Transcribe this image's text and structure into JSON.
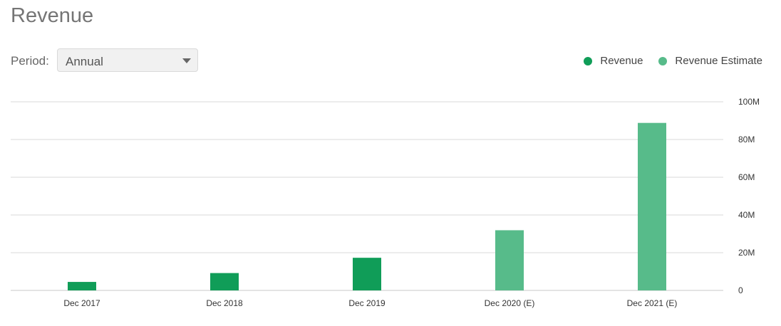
{
  "header": {
    "title": "Revenue"
  },
  "period": {
    "label": "Period:",
    "selected": "Annual"
  },
  "colors": {
    "actual": "#109d58",
    "estimate": "#57bb8a",
    "grid": "#d9d9d9"
  },
  "legend": [
    {
      "label": "Revenue",
      "color": "#109d58"
    },
    {
      "label": "Revenue Estimate",
      "color": "#57bb8a"
    }
  ],
  "chart_data": {
    "type": "bar",
    "categories": [
      "Dec 2017",
      "Dec 2018",
      "Dec 2019",
      "Dec 2020 (E)",
      "Dec 2021 (E)"
    ],
    "series": [
      {
        "name": "Revenue",
        "values": [
          4.5,
          9.2,
          17.3,
          null,
          null
        ]
      },
      {
        "name": "Revenue Estimate",
        "values": [
          null,
          null,
          null,
          31.9,
          88.8
        ]
      }
    ],
    "y_ticks": [
      "0",
      "20M",
      "40M",
      "60M",
      "80M",
      "100M"
    ],
    "ylim": [
      0,
      100
    ],
    "y_unit": "M",
    "grid": true,
    "legend_position": "top-right"
  }
}
